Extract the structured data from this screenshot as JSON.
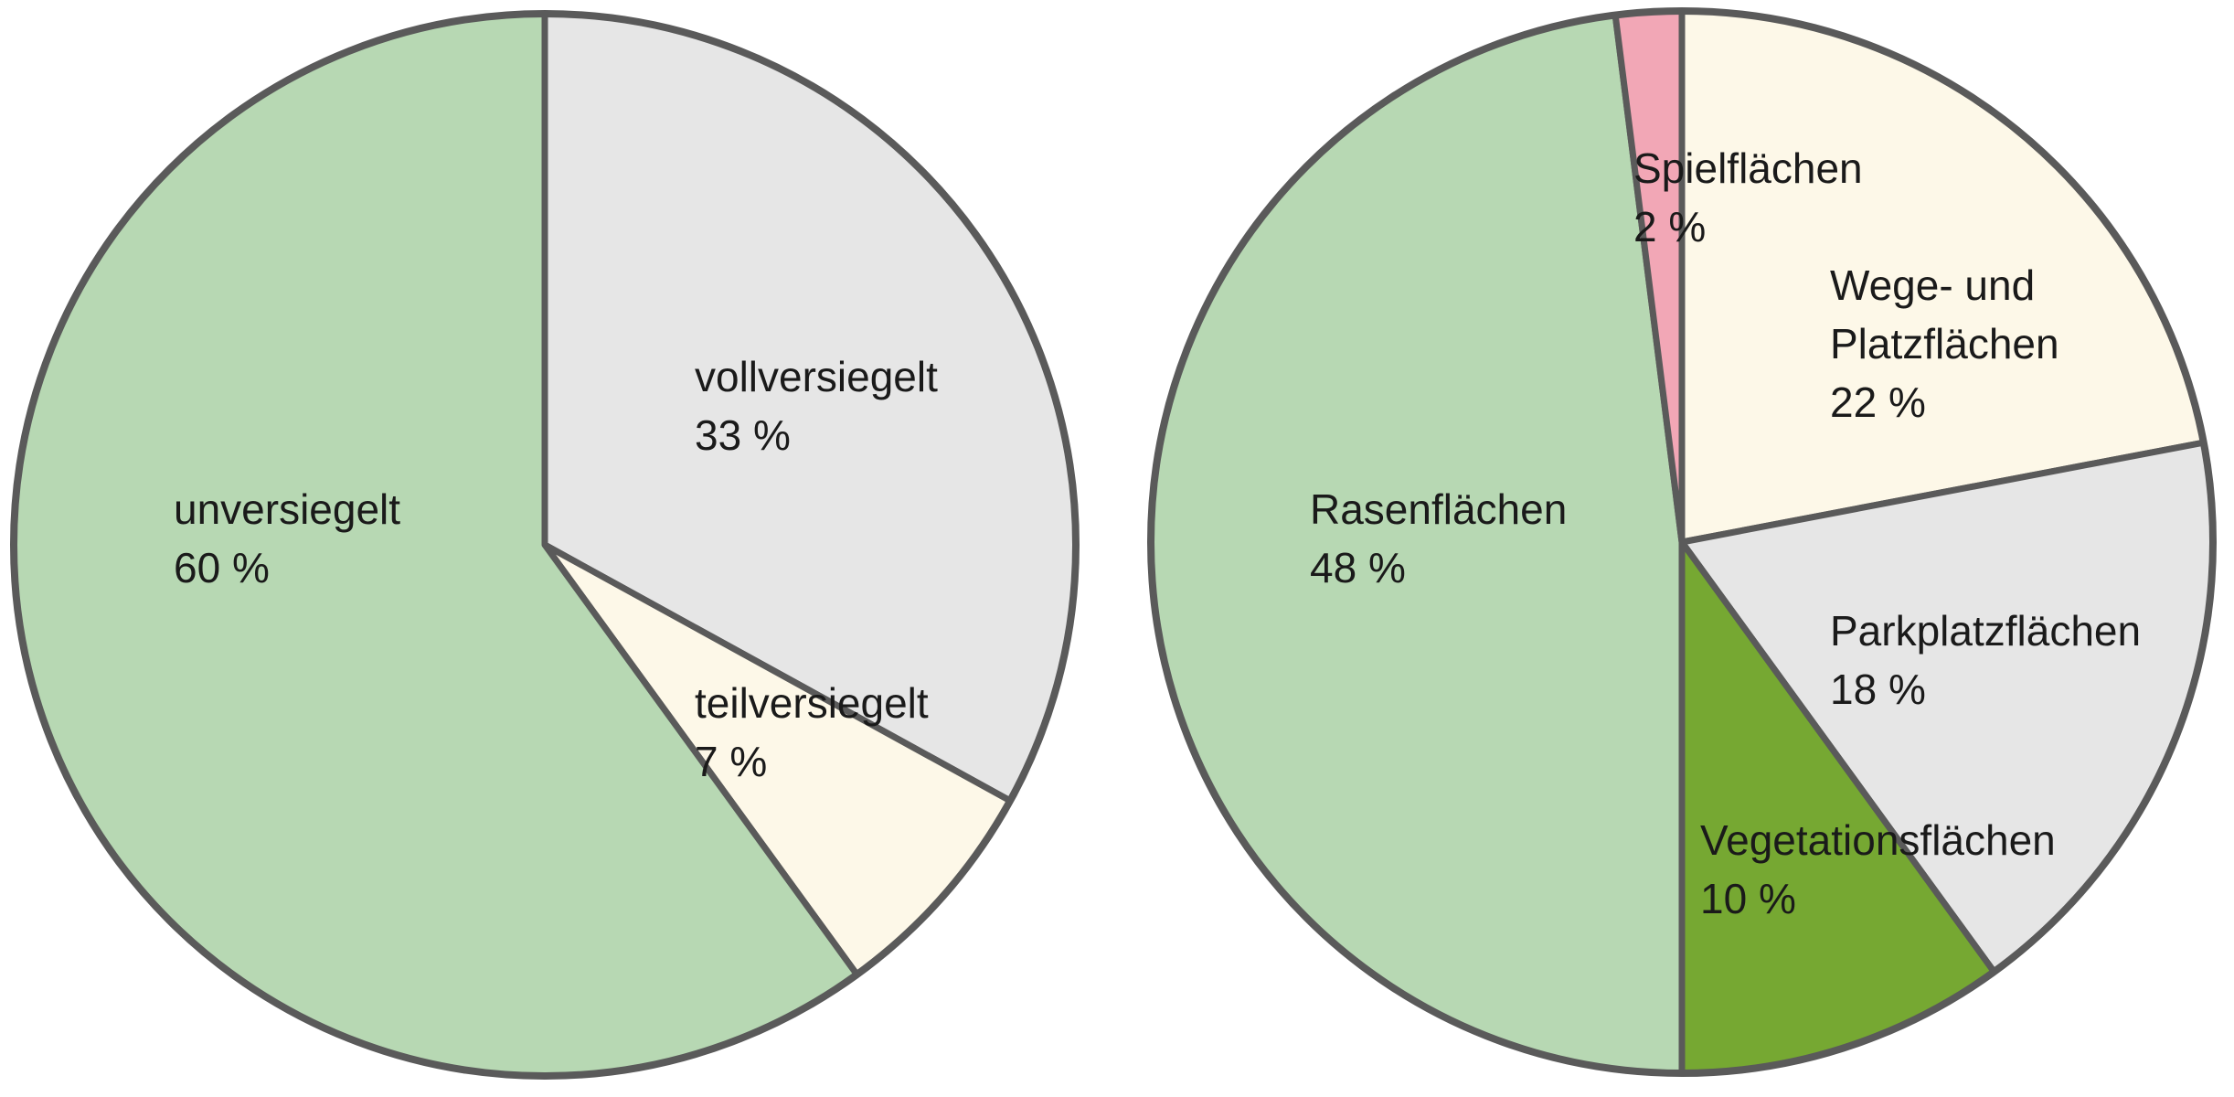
{
  "chart_data": [
    {
      "type": "pie",
      "slices": [
        {
          "label": "vollversiegelt",
          "value": 33,
          "value_text": "33 %",
          "color": "#e6e6e6"
        },
        {
          "label": "teilversiegelt",
          "value": 7,
          "value_text": "7 %",
          "color": "#fdf8e8"
        },
        {
          "label": "unversiegelt",
          "value": 60,
          "value_text": "60 %",
          "color": "#b7d8b3"
        }
      ]
    },
    {
      "type": "pie",
      "slices": [
        {
          "label": "Wege- und Platzflächen",
          "label_lines": [
            "Wege- und",
            "Platzflächen"
          ],
          "value": 22,
          "value_text": "22 %",
          "color": "#fdf8e8"
        },
        {
          "label": "Parkplatzflächen",
          "value": 18,
          "value_text": "18 %",
          "color": "#e6e6e6"
        },
        {
          "label": "Vegetationsflächen",
          "value": 10,
          "value_text": "10 %",
          "color": "#76a832"
        },
        {
          "label": "Rasenflächen",
          "value": 48,
          "value_text": "48 %",
          "color": "#b7d8b3"
        },
        {
          "label": "Spielflächen",
          "value": 2,
          "value_text": "2 %",
          "color": "#f2a7b6"
        }
      ]
    }
  ]
}
